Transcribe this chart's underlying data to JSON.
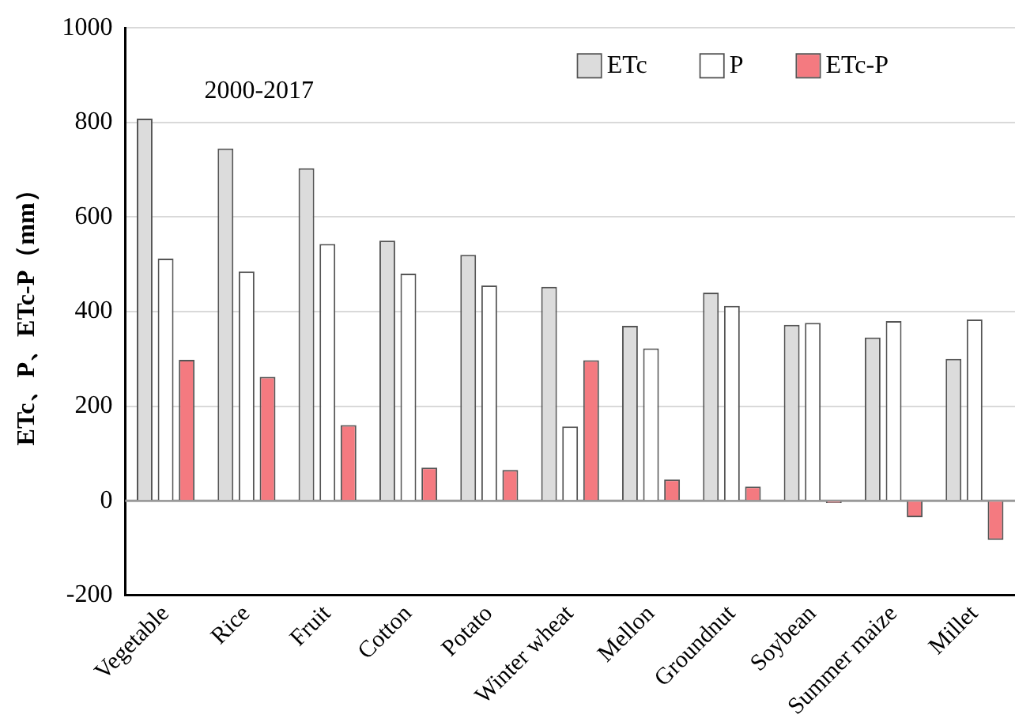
{
  "chart_data": {
    "type": "bar",
    "ylabel": "ETc、P、ETc-P（mm）",
    "annotations": [
      "2000-2017"
    ],
    "categories": [
      "Vegetable",
      "Rice",
      "Fruit",
      "Cotton",
      "Potato",
      "Winter wheat",
      "Mellon",
      "Groundnut",
      "Soybean",
      "Summer maize",
      "Millet"
    ],
    "series": [
      {
        "name": "ETc",
        "color": "#dcdcdc",
        "values": [
          808,
          745,
          703,
          550,
          520,
          452,
          370,
          440,
          372,
          345,
          300
        ]
      },
      {
        "name": "P",
        "color": "#ffffff",
        "values": [
          512,
          485,
          543,
          480,
          455,
          157,
          322,
          412,
          376,
          380,
          383
        ]
      },
      {
        "name": "ETc-P",
        "color": "#f47a80",
        "values": [
          298,
          262,
          160,
          70,
          65,
          297,
          45,
          30,
          -5,
          -35,
          -83
        ]
      }
    ],
    "ylim": [
      -200,
      1000
    ],
    "yticks": [
      -200,
      0,
      200,
      400,
      600,
      800,
      1000
    ],
    "grid": "y",
    "legend": "top right"
  }
}
